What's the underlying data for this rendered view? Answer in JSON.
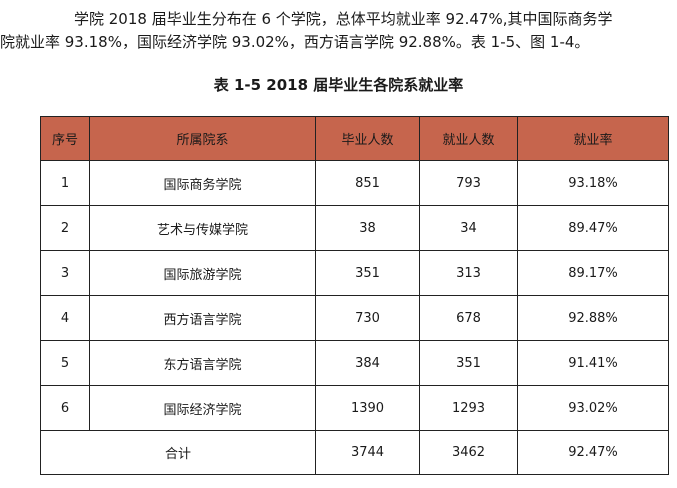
{
  "paragraph": {
    "line1": "学院  2018  届毕业生分布在  6 个学院，总体平均就业率  92.47%,其中国际商务学",
    "line2": "院就业率 93.18%，国际经济学院 93.02%，西方语言学院 92.88%。表 1-5、图 1-4。"
  },
  "table_caption": "表 1-5 2018  届毕业生各院系就业率",
  "table": {
    "headers": {
      "seq": "序号",
      "dept": "所属院系",
      "graduates": "毕业人数",
      "employed": "就业人数",
      "rate": "就业率"
    },
    "rows": [
      {
        "seq": "1",
        "dept": "国际商务学院",
        "graduates": "851",
        "employed": "793",
        "rate": "93.18%"
      },
      {
        "seq": "2",
        "dept": "艺术与传媒学院",
        "graduates": "38",
        "employed": "34",
        "rate": "89.47%"
      },
      {
        "seq": "3",
        "dept": "国际旅游学院",
        "graduates": "351",
        "employed": "313",
        "rate": "89.17%"
      },
      {
        "seq": "4",
        "dept": "西方语言学院",
        "graduates": "730",
        "employed": "678",
        "rate": "92.88%"
      },
      {
        "seq": "5",
        "dept": "东方语言学院",
        "graduates": "384",
        "employed": "351",
        "rate": "91.41%"
      },
      {
        "seq": "6",
        "dept": "国际经济学院",
        "graduates": "1390",
        "employed": "1293",
        "rate": "93.02%"
      }
    ],
    "total": {
      "label": "合计",
      "graduates": "3744",
      "employed": "3462",
      "rate": "92.47%"
    }
  },
  "colors": {
    "header_fill": "#c6654d",
    "border": "#222222"
  }
}
